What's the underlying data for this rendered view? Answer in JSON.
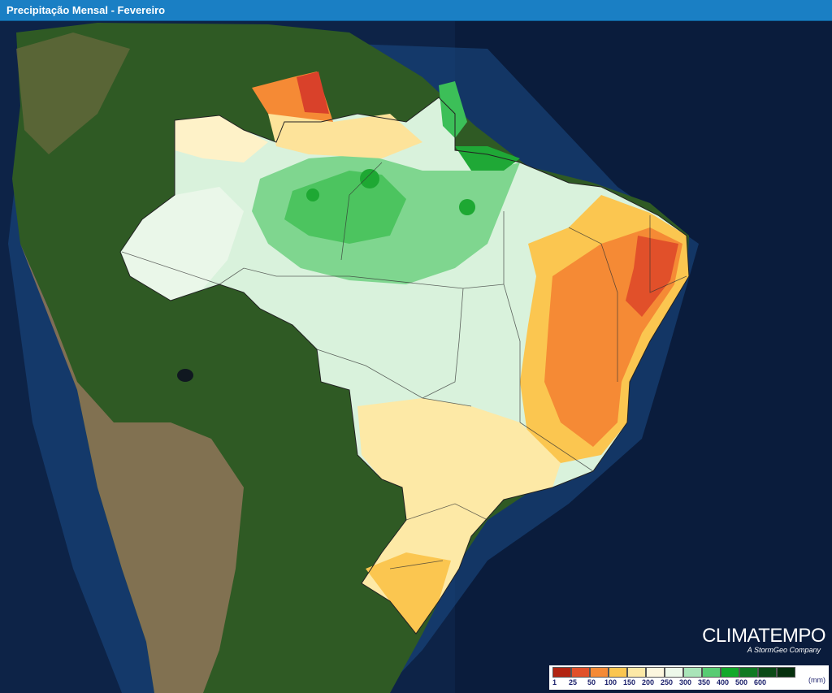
{
  "header": {
    "title": "Precipitação Mensal - Fevereiro"
  },
  "brand": {
    "name": "CLIMATEMPO",
    "tagline": "A StormGeo Company"
  },
  "legend": {
    "unit": "(mm)",
    "ticks": [
      "1",
      "25",
      "50",
      "100",
      "150",
      "200",
      "250",
      "300",
      "350",
      "400",
      "500",
      "600"
    ],
    "colors": [
      "#b22512",
      "#e1502a",
      "#f58a35",
      "#fbc650",
      "#fde9a6",
      "#fdf7df",
      "#eef9ea",
      "#a9e5b8",
      "#58cc73",
      "#12a92b",
      "#107a22",
      "#0b4a16",
      "#06300d"
    ]
  },
  "colors": {
    "ocean": "#0d2347",
    "land": "#2f5a24",
    "andes": "#8b7356",
    "header_bar": "#1a7fc4"
  }
}
